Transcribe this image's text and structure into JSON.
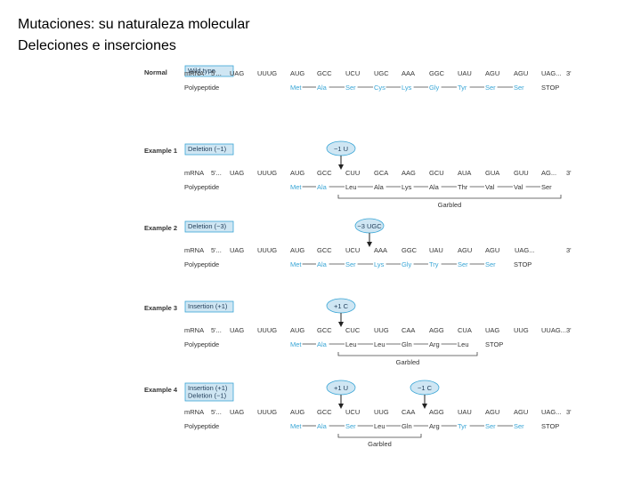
{
  "slide": {
    "title_line1": "Mutaciones: su naturaleza molecular",
    "title_line2": "Deleciones e inserciones"
  },
  "colors": {
    "accent": "#3aa6d6",
    "box_fill": "#cfe6f3",
    "text": "#333333",
    "line": "#444444"
  },
  "rows": {
    "mrna_label": "mRNA",
    "five_prime": "5'...",
    "three_prime": "3'",
    "polypeptide_label": "Polypeptide"
  },
  "sections": [
    {
      "name": "Normal",
      "box": [
        "Wild type"
      ],
      "codons": [
        "UAG",
        "UUUG",
        "AUG",
        "GCC",
        "UCU",
        "UGC",
        "AAA",
        "GGC",
        "UAU",
        "AGU",
        "AGU",
        "UAG..."
      ],
      "aa": [
        "Met",
        "Ala",
        "Ser",
        "Cys",
        "Lys",
        "Gly",
        "Tyr",
        "Ser",
        "Ser",
        "STOP"
      ],
      "aa_blue": [
        true,
        true,
        true,
        true,
        true,
        true,
        true,
        true,
        true,
        false
      ],
      "aa_line_after": [
        true,
        true,
        true,
        true,
        true,
        true,
        true,
        true,
        false,
        false
      ],
      "markers": [],
      "garbled": null
    },
    {
      "name": "Example 1",
      "box": [
        "Deletion (−1)"
      ],
      "codons": [
        "UAG",
        "UUUG",
        "AUG",
        "GCC",
        "CUU",
        "GCA",
        "AAG",
        "GCU",
        "AUA",
        "GUA",
        "GUU",
        "AG..."
      ],
      "aa": [
        "Met",
        "Ala",
        "Leu",
        "Ala",
        "Lys",
        "Ala",
        "Thr",
        "Val",
        "Val",
        "Ser"
      ],
      "aa_blue": [
        true,
        true,
        false,
        false,
        false,
        false,
        false,
        false,
        false,
        false
      ],
      "aa_line_after": [
        true,
        true,
        true,
        true,
        true,
        true,
        true,
        true,
        true,
        false
      ],
      "markers": [
        {
          "label": "−1 U",
          "col": 4
        }
      ],
      "garbled": {
        "label": "Garbled",
        "from": 4,
        "to": 11
      }
    },
    {
      "name": "Example 2",
      "box": [
        "Deletion (−3)"
      ],
      "codons": [
        "UAG",
        "UUUG",
        "AUG",
        "GCC",
        "UCU",
        "AAA",
        "GGC",
        "UAU",
        "AGU",
        "AGU",
        "UAG..."
      ],
      "aa": [
        "Met",
        "Ala",
        "Ser",
        "Lys",
        "Gly",
        "Try",
        "Ser",
        "Ser",
        "STOP"
      ],
      "aa_blue": [
        true,
        true,
        true,
        true,
        true,
        true,
        true,
        true,
        false
      ],
      "aa_line_after": [
        true,
        true,
        true,
        true,
        true,
        true,
        true,
        false,
        false
      ],
      "markers": [
        {
          "label": "−3 UGC",
          "col": 5
        }
      ],
      "garbled": null
    },
    {
      "name": "Example 3",
      "box": [
        "Insertion (+1)"
      ],
      "codons": [
        "UAG",
        "UUUG",
        "AUG",
        "GCC",
        "CUC",
        "UUG",
        "CAA",
        "AGG",
        "CUA",
        "UAG",
        "UUG",
        "UUAG..."
      ],
      "aa": [
        "Met",
        "Ala",
        "Leu",
        "Leu",
        "Gln",
        "Arg",
        "Leu",
        "STOP"
      ],
      "aa_blue": [
        true,
        true,
        false,
        false,
        false,
        false,
        false,
        false
      ],
      "aa_line_after": [
        true,
        true,
        true,
        true,
        true,
        true,
        false,
        false
      ],
      "markers": [
        {
          "label": "+1 C",
          "col": 4
        }
      ],
      "garbled": {
        "label": "Garbled",
        "from": 4,
        "to": 8
      }
    },
    {
      "name": "Example 4",
      "box": [
        "Insertion (+1)",
        "Deletion (−1)"
      ],
      "codons": [
        "UAG",
        "UUUG",
        "AUG",
        "GCC",
        "UCU",
        "UUG",
        "CAA",
        "AGG",
        "UAU",
        "AGU",
        "AGU",
        "UAG..."
      ],
      "aa": [
        "Met",
        "Ala",
        "Ser",
        "Leu",
        "Gln",
        "Arg",
        "Tyr",
        "Ser",
        "Ser",
        "STOP"
      ],
      "aa_blue": [
        true,
        true,
        true,
        false,
        false,
        false,
        true,
        true,
        true,
        false
      ],
      "aa_line_after": [
        true,
        true,
        true,
        true,
        true,
        true,
        true,
        true,
        false,
        false
      ],
      "markers": [
        {
          "label": "+1 U",
          "col": 4
        },
        {
          "label": "−1 C",
          "col": 7
        }
      ],
      "garbled": {
        "label": "Garbled",
        "from": 4,
        "to": 6
      }
    }
  ]
}
